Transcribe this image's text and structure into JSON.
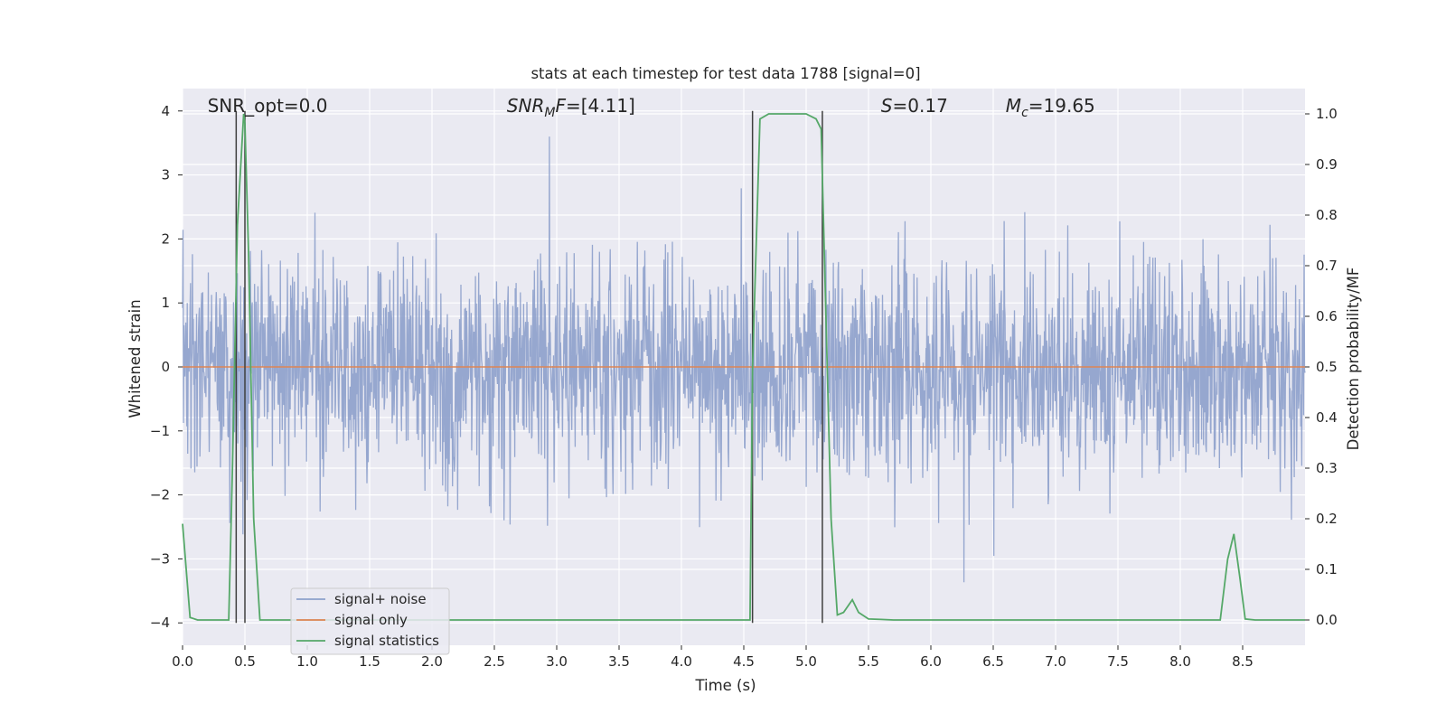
{
  "chart_data": {
    "type": "line",
    "title": "stats at each timestep for test data 1788 [signal=0]",
    "xlabel": "Time (s)",
    "ylabel": "Whitened strain",
    "y2label": "Detection probability/MF",
    "xlim": [
      0,
      9.0
    ],
    "ylim": [
      -4.35,
      4.35
    ],
    "y2lim": [
      -0.05,
      1.05
    ],
    "xticks": [
      "0.0",
      "0.5",
      "1.0",
      "1.5",
      "2.0",
      "2.5",
      "3.0",
      "3.5",
      "4.0",
      "4.5",
      "5.0",
      "5.5",
      "6.0",
      "6.5",
      "7.0",
      "7.5",
      "8.0",
      "8.5"
    ],
    "yticks": [
      "4",
      "3",
      "2",
      "1",
      "0",
      "−1",
      "−2",
      "−3",
      "−4"
    ],
    "y2ticks": [
      "1.0",
      "0.9",
      "0.8",
      "0.7",
      "0.6",
      "0.5",
      "0.4",
      "0.3",
      "0.2",
      "0.1",
      "0.0"
    ],
    "grid": true,
    "legend_placement": "lower-left",
    "series": [
      {
        "name": "signal+ noise",
        "color": "#8da0cb",
        "axis": "left",
        "note_values": "dense whitened noise, roughly within -4 to +3.6"
      },
      {
        "name": "signal only",
        "color": "#dd8452",
        "axis": "left",
        "values_constant": 0
      },
      {
        "name": "signal statistics",
        "color": "#55a868",
        "axis": "right",
        "x": [
          0.0,
          0.06,
          0.12,
          0.2,
          0.3,
          0.37,
          0.4,
          0.44,
          0.49,
          0.5,
          0.53,
          0.57,
          0.62,
          1.0,
          2.0,
          3.0,
          4.0,
          4.55,
          4.57,
          4.63,
          4.7,
          4.8,
          5.0,
          5.08,
          5.12,
          5.2,
          5.25,
          5.3,
          5.37,
          5.42,
          5.5,
          5.6,
          5.7,
          6.0,
          7.0,
          8.0,
          8.32,
          8.38,
          8.43,
          8.48,
          8.52,
          8.6,
          9.0
        ],
        "values": [
          0.19,
          0.005,
          0.0,
          0.0,
          0.0,
          0.0,
          0.3,
          0.78,
          1.0,
          0.98,
          0.72,
          0.2,
          0.0,
          0.0,
          0.0,
          0.0,
          0.0,
          0.0,
          0.5,
          0.99,
          1.0,
          1.0,
          1.0,
          0.99,
          0.97,
          0.2,
          0.01,
          0.015,
          0.04,
          0.015,
          0.002,
          0.001,
          0.0,
          0.0,
          0.0,
          0.0,
          0.0,
          0.12,
          0.17,
          0.08,
          0.002,
          0.0,
          0.0
        ]
      }
    ],
    "vertical_lines_x": [
      0.43,
      0.5,
      4.57,
      5.13
    ],
    "annotations": [
      {
        "text": "SNR_opt=0.0",
        "x": 0.2,
        "y": 4.05
      },
      {
        "text": "$SNR_MF$=[4.11]",
        "display_base": "SNR",
        "display_sub": "M",
        "display_rest": "F=[4.11]",
        "x": 2.6,
        "y": 4.05
      },
      {
        "text": "$S$=0.17",
        "display_base": "S",
        "display_rest": "=0.17",
        "x": 5.6,
        "y": 4.05
      },
      {
        "text": "$M_c$=19.65",
        "display_base": "M",
        "display_sub": "c",
        "display_rest": "=19.65",
        "x": 6.6,
        "y": 4.05
      }
    ]
  }
}
